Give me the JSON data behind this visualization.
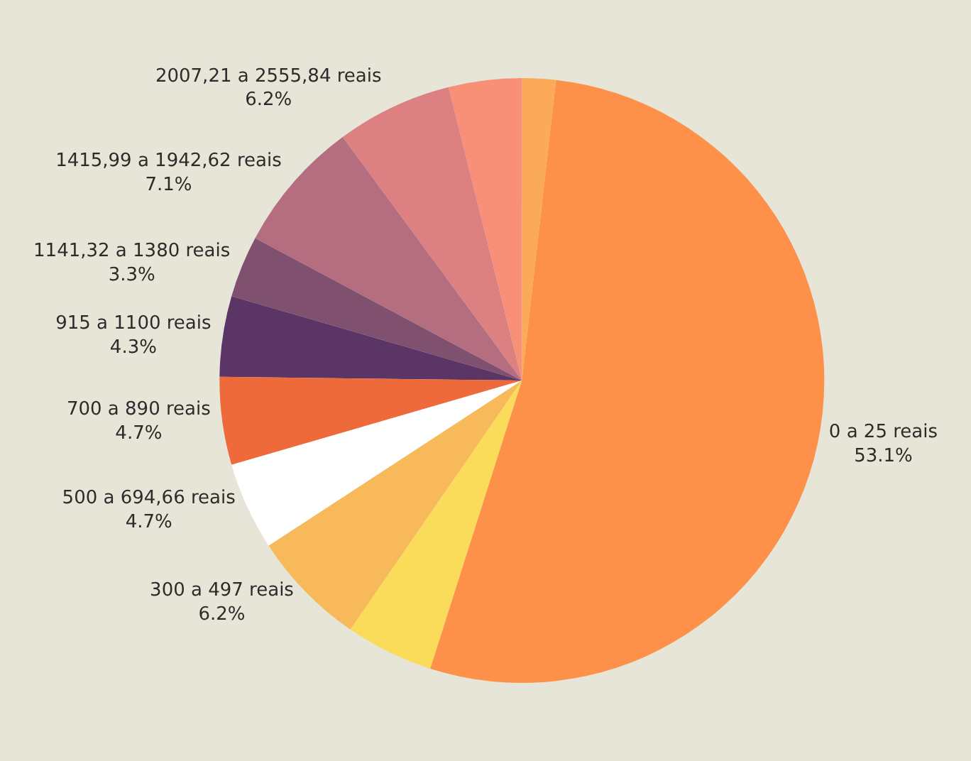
{
  "chart_data": {
    "type": "pie",
    "categories": [
      null,
      null,
      "2007,21 a 2555,84 reais",
      "1415,99 a 1942,62 reais",
      "1141,32 a 1380 reais",
      "915 a 1100 reais",
      "700 a 890 reais",
      "500 a 694,66 reais",
      "300 a 497 reais",
      null,
      "0 a 25 reais"
    ],
    "values": [
      1.8,
      3.9,
      6.2,
      7.1,
      3.3,
      4.3,
      4.7,
      4.7,
      6.2,
      4.7,
      53.1
    ],
    "value_labels": [
      null,
      null,
      "6.2%",
      "7.1%",
      "3.3%",
      "4.3%",
      "4.7%",
      "4.7%",
      "6.2%",
      null,
      "53.1%"
    ],
    "colors": [
      "#fbaa5a",
      "#f79077",
      "#dc8082",
      "#b56e80",
      "#80506f",
      "#5a3565",
      "#ee6a3a",
      "#ffffff",
      "#f8b95a",
      "#fbdb5a",
      "#fd914a"
    ],
    "legend": false
  }
}
